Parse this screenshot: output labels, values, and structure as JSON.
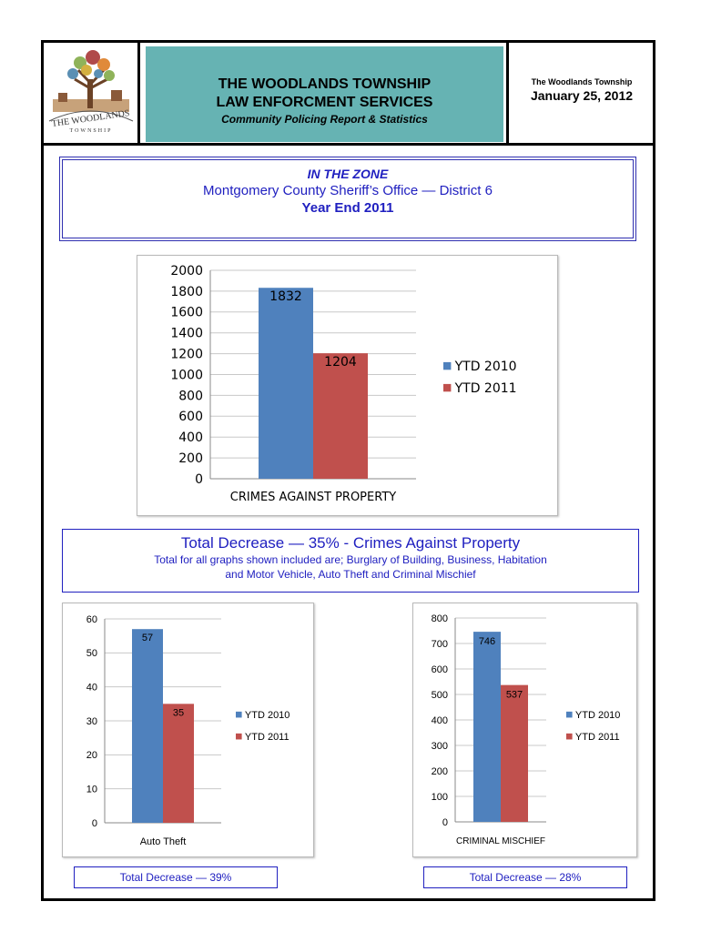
{
  "header": {
    "logo_text": "THE WOODLANDS",
    "logo_sub": "TOWNSHIP",
    "title_line1": "THE WOODLANDS TOWNSHIP",
    "title_line2": "LAW ENFORCMENT SERVICES",
    "subtitle": "Community Policing Report & Statistics",
    "org": "The Woodlands Township",
    "date": "January 25, 2012"
  },
  "zone": {
    "title": "IN THE ZONE",
    "office": "Montgomery County Sheriff’s Office — District 6",
    "period": "Year End 2011"
  },
  "summary": {
    "headline": "Total Decrease  — 35% - Crimes Against Property",
    "note_line1": "Total for all graphs shown included are; Burglary of Building, Business, Habitation",
    "note_line2": "and Motor Vehicle, Auto Theft and Criminal Mischief"
  },
  "decreases": {
    "auto_theft": "Total Decrease  — 39%",
    "criminal_mischief": "Total Decrease  — 28%"
  },
  "colors": {
    "ytd2010": "#4f81bd",
    "ytd2011": "#c0504d",
    "accent": "#2020c0",
    "header_bg": "#66b3b3"
  },
  "chart_data": [
    {
      "type": "bar",
      "categories": [
        "CRIMES AGAINST PROPERTY"
      ],
      "series": [
        {
          "name": "YTD 2010",
          "values": [
            1832
          ]
        },
        {
          "name": "YTD 2011",
          "values": [
            1204
          ]
        }
      ],
      "ylim": [
        0,
        2000
      ],
      "yticks": [
        0,
        200,
        400,
        600,
        800,
        1000,
        1200,
        1400,
        1600,
        1800,
        2000
      ],
      "data_labels": true,
      "legend": "right",
      "grid": true
    },
    {
      "type": "bar",
      "categories": [
        "Auto Theft"
      ],
      "series": [
        {
          "name": "YTD 2010",
          "values": [
            57
          ]
        },
        {
          "name": "YTD 2011",
          "values": [
            35
          ]
        }
      ],
      "ylim": [
        0,
        60
      ],
      "yticks": [
        0,
        10,
        20,
        30,
        40,
        50,
        60
      ],
      "data_labels": true,
      "legend": "right",
      "grid": true
    },
    {
      "type": "bar",
      "categories": [
        "CRIMINAL MISCHIEF"
      ],
      "series": [
        {
          "name": "YTD 2010",
          "values": [
            746
          ]
        },
        {
          "name": "YTD 2011",
          "values": [
            537
          ]
        }
      ],
      "ylim": [
        0,
        800
      ],
      "yticks": [
        0,
        100,
        200,
        300,
        400,
        500,
        600,
        700,
        800
      ],
      "data_labels": true,
      "legend": "right",
      "grid": true
    }
  ]
}
